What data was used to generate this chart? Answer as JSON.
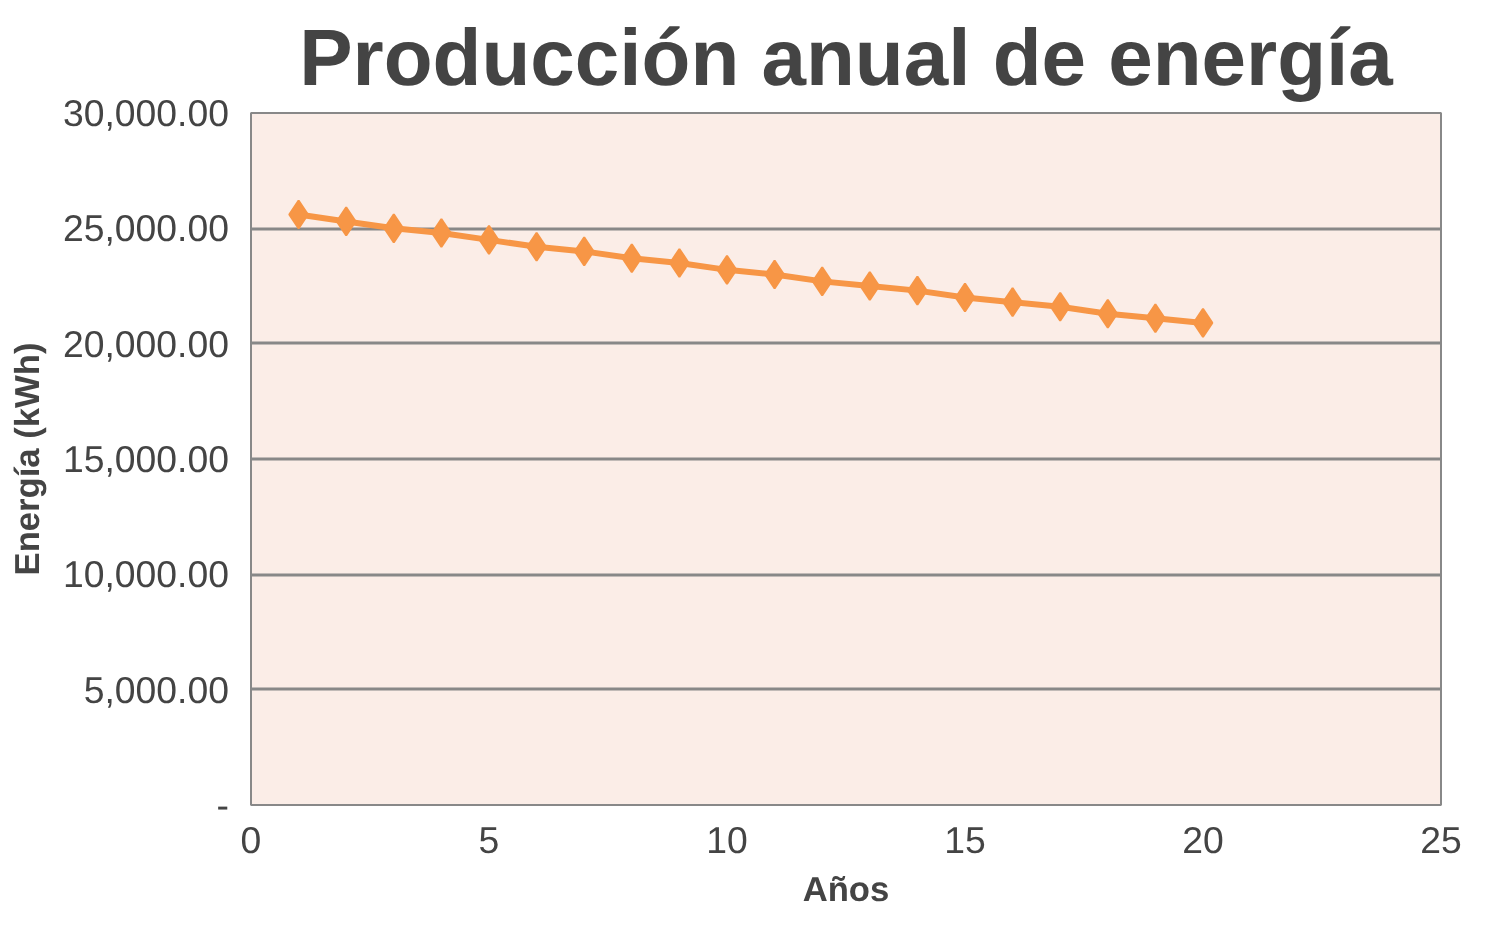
{
  "chart_data": {
    "type": "line",
    "title": "Producción anual de energía",
    "xlabel": "Años",
    "ylabel": "Energía (kWh)",
    "x": [
      1,
      2,
      3,
      4,
      5,
      6,
      7,
      8,
      9,
      10,
      11,
      12,
      13,
      14,
      15,
      16,
      17,
      18,
      19,
      20
    ],
    "series": [
      {
        "color": "#f79646",
        "values": [
          25600,
          25300,
          25000,
          24800,
          24500,
          24200,
          24000,
          23700,
          23500,
          23200,
          23000,
          22700,
          22500,
          22300,
          22000,
          21800,
          21600,
          21300,
          21100,
          20900
        ]
      }
    ],
    "xlim": [
      0,
      25
    ],
    "xticks": [
      0,
      5,
      10,
      15,
      20,
      25
    ],
    "ylim": [
      0,
      30000
    ],
    "yticks": [
      {
        "value": 0,
        "label": "-"
      },
      {
        "value": 5000,
        "label": "5,000.00"
      },
      {
        "value": 10000,
        "label": "10,000.00"
      },
      {
        "value": 15000,
        "label": "15,000.00"
      },
      {
        "value": 20000,
        "label": "20,000.00"
      },
      {
        "value": 25000,
        "label": "25,000.00"
      },
      {
        "value": 30000,
        "label": "30,000.00"
      }
    ],
    "grid": "y",
    "marker": "diamond",
    "line_style": "solid"
  }
}
